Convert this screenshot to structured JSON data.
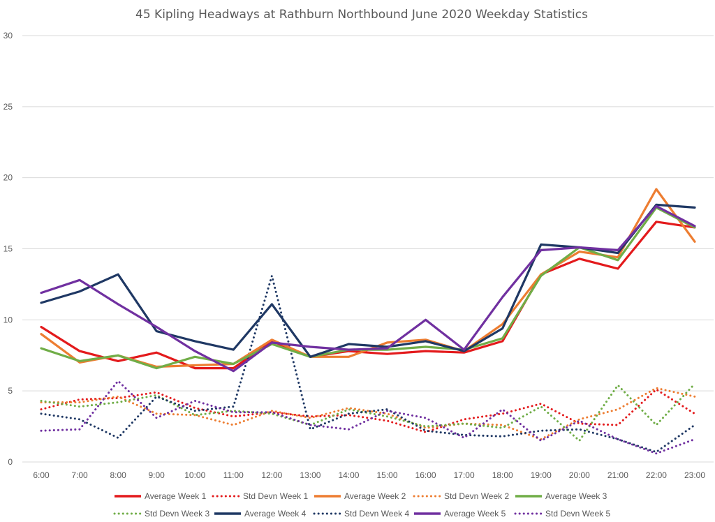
{
  "chart_data": {
    "type": "line",
    "title": "45 Kipling Headways at Rathburn Northbound June 2020 Weekday Statistics",
    "xlabel": "",
    "ylabel": "",
    "ylim": [
      0,
      30
    ],
    "yticks": [
      "0",
      "5",
      "10",
      "15",
      "20",
      "25",
      "30"
    ],
    "grid": true,
    "legend_position": "bottom",
    "categories": [
      "6:00",
      "7:00",
      "8:00",
      "9:00",
      "10:00",
      "11:00",
      "12:00",
      "13:00",
      "14:00",
      "15:00",
      "16:00",
      "17:00",
      "18:00",
      "19:00",
      "20:00",
      "21:00",
      "22:00",
      "23:00"
    ],
    "series": [
      {
        "name": "Average Week 1",
        "color": "#e31a1c",
        "style": "solid",
        "values": [
          9.5,
          7.8,
          7.1,
          7.7,
          6.6,
          6.6,
          8.5,
          7.4,
          7.8,
          7.6,
          7.8,
          7.7,
          8.5,
          13.2,
          14.3,
          13.6,
          16.9,
          16.5
        ]
      },
      {
        "name": "Std Devn Week 1",
        "color": "#e31a1c",
        "style": "dotted",
        "values": [
          3.7,
          4.4,
          4.5,
          4.9,
          3.8,
          3.2,
          3.5,
          3.2,
          3.3,
          2.9,
          2.1,
          3.0,
          3.4,
          4.1,
          2.7,
          2.6,
          5.1,
          3.4
        ]
      },
      {
        "name": "Std Devn Week 2",
        "color": "#ed7d31",
        "style": "dotted",
        "values": [
          4.2,
          4.2,
          4.6,
          3.4,
          3.3,
          2.6,
          3.6,
          3.1,
          3.8,
          3.4,
          2.4,
          2.7,
          2.6,
          1.6,
          3.0,
          3.7,
          5.2,
          4.6
        ]
      },
      {
        "name": "Std Devn Week 3",
        "color": "#70ad47",
        "style": "dotted",
        "values": [
          4.3,
          3.9,
          4.2,
          4.7,
          3.3,
          3.6,
          3.4,
          2.6,
          3.7,
          3.2,
          2.5,
          2.7,
          2.4,
          3.9,
          1.5,
          5.4,
          2.6,
          5.5
        ]
      },
      {
        "name": "Std Devn Week 4",
        "color": "#1f3864",
        "style": "dotted",
        "values": [
          3.4,
          3.0,
          1.7,
          4.6,
          3.6,
          3.9,
          13.1,
          2.3,
          3.4,
          3.7,
          2.2,
          1.9,
          1.8,
          2.2,
          2.3,
          1.6,
          0.7,
          2.6
        ]
      },
      {
        "name": "Std Devn Week 5",
        "color": "#7030a0",
        "style": "dotted",
        "values": [
          2.2,
          2.3,
          5.7,
          3.1,
          4.3,
          3.5,
          3.5,
          2.6,
          2.3,
          3.6,
          3.1,
          1.7,
          3.7,
          1.5,
          2.9,
          1.6,
          0.6,
          1.6
        ]
      },
      {
        "name": "Average Week 2",
        "color": "#ed7d31",
        "style": "solid",
        "values": [
          9.0,
          7.0,
          7.5,
          6.7,
          6.8,
          6.9,
          8.6,
          7.4,
          7.4,
          8.4,
          8.6,
          7.8,
          9.7,
          13.2,
          14.8,
          14.4,
          19.2,
          15.5
        ]
      },
      {
        "name": "Average Week 3",
        "color": "#70ad47",
        "style": "solid",
        "values": [
          8.0,
          7.1,
          7.5,
          6.6,
          7.4,
          6.9,
          8.3,
          7.4,
          7.9,
          7.9,
          8.1,
          7.9,
          8.7,
          13.1,
          15.1,
          14.2,
          17.9,
          16.5
        ]
      },
      {
        "name": "Average Week 4",
        "color": "#1f3864",
        "style": "solid",
        "values": [
          11.2,
          12.0,
          13.2,
          9.2,
          8.5,
          7.9,
          11.1,
          7.4,
          8.3,
          8.1,
          8.5,
          7.8,
          9.4,
          15.3,
          15.1,
          14.7,
          18.1,
          17.9
        ]
      },
      {
        "name": "Average Week 5",
        "color": "#7030a0",
        "style": "solid",
        "values": [
          11.9,
          12.8,
          11.1,
          9.5,
          7.8,
          6.4,
          8.4,
          8.1,
          7.9,
          8.0,
          10.0,
          7.9,
          11.6,
          14.9,
          15.1,
          14.9,
          18.0,
          16.6
        ]
      }
    ],
    "legend": [
      {
        "name": "Average Week 1",
        "color": "#e31a1c",
        "style": "solid"
      },
      {
        "name": "Std Devn Week 1",
        "color": "#e31a1c",
        "style": "dotted"
      },
      {
        "name": "Average Week 2",
        "color": "#ed7d31",
        "style": "solid"
      },
      {
        "name": "Std Devn Week 2",
        "color": "#ed7d31",
        "style": "dotted"
      },
      {
        "name": "Average Week 3",
        "color": "#70ad47",
        "style": "solid"
      },
      {
        "name": "Std Devn Week 3",
        "color": "#70ad47",
        "style": "dotted"
      },
      {
        "name": "Average Week 4",
        "color": "#1f3864",
        "style": "solid"
      },
      {
        "name": "Std Devn Week 4",
        "color": "#1f3864",
        "style": "dotted"
      },
      {
        "name": "Average Week 5",
        "color": "#7030a0",
        "style": "solid"
      },
      {
        "name": "Std Devn Week 5",
        "color": "#7030a0",
        "style": "dotted"
      }
    ]
  }
}
